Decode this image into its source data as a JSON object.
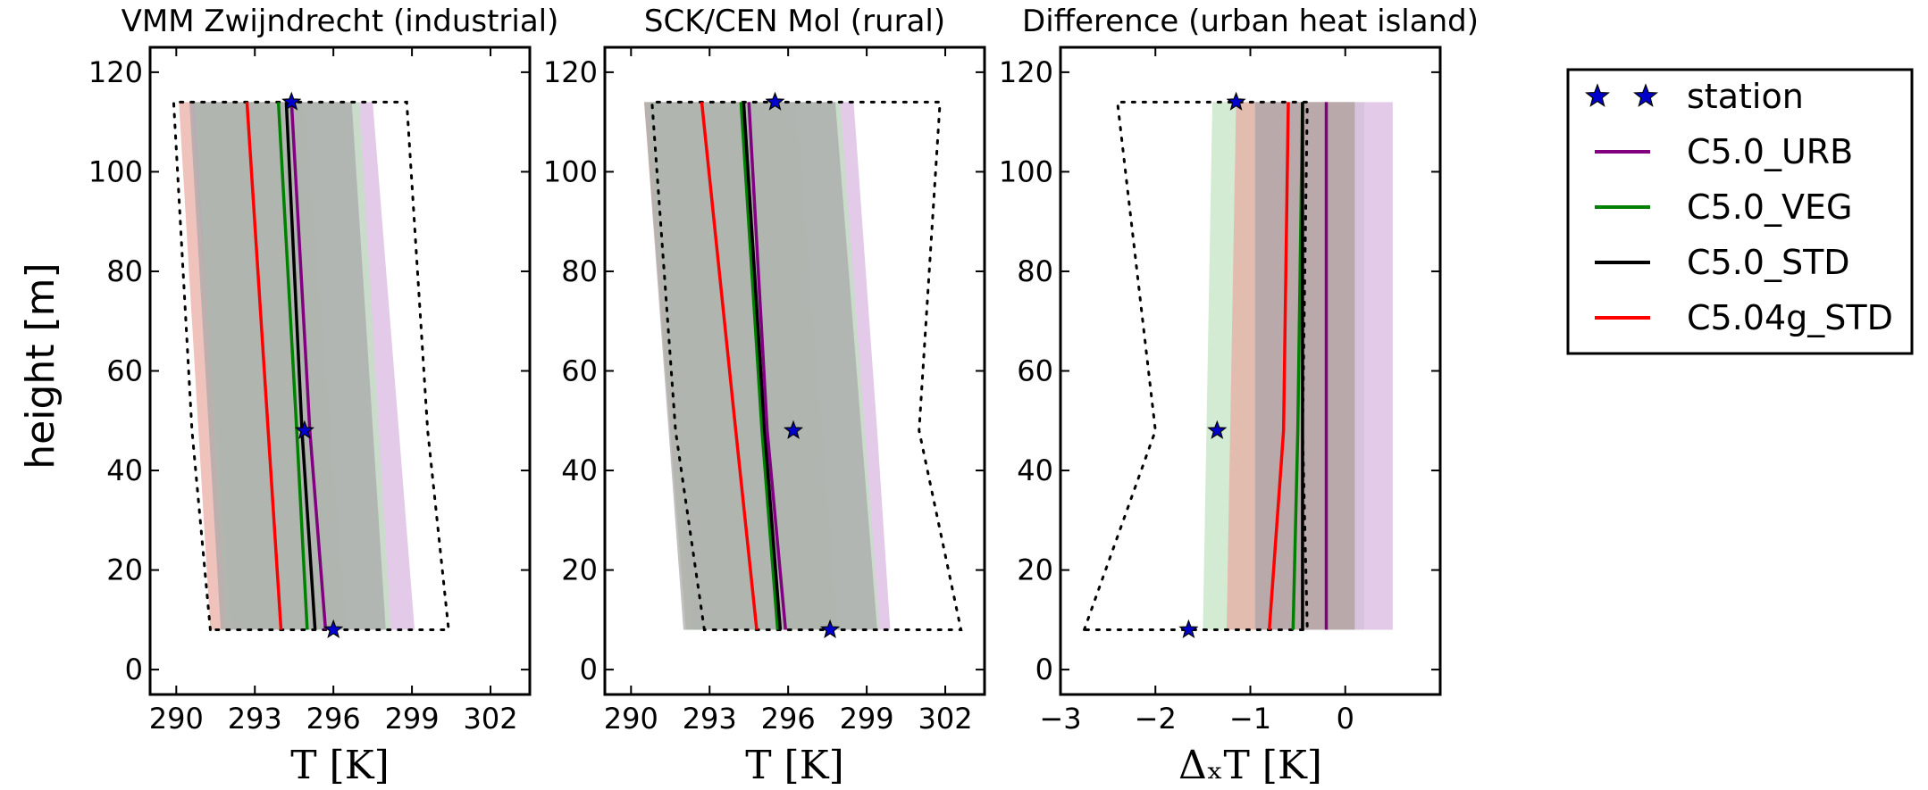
{
  "chart_data": [
    {
      "type": "line",
      "title": "VMM Zwijndrecht (industrial)",
      "xlabel": "T [K]",
      "ylabel": "height [m]",
      "xlim": [
        289,
        303.5
      ],
      "ylim": [
        -5,
        125
      ],
      "xticks": [
        290,
        293,
        296,
        299,
        302
      ],
      "xtick_labels": [
        "290",
        "293",
        "296",
        "299",
        "302"
      ],
      "yticks": [
        0,
        20,
        40,
        60,
        80,
        100,
        120
      ],
      "ytick_labels": [
        "0",
        "20",
        "40",
        "60",
        "80",
        "100",
        "120"
      ],
      "station": {
        "x": [
          296.0,
          294.9,
          294.4
        ],
        "y": [
          8,
          48,
          114
        ]
      },
      "envelope": {
        "y": [
          8,
          48,
          114
        ],
        "left": [
          291.3,
          290.6,
          289.9
        ],
        "right": [
          300.4,
          299.6,
          298.8
        ]
      },
      "bands": [
        {
          "series": "C5.04g_STD",
          "y": [
            8,
            114
          ],
          "left": [
            291.3,
            290.1
          ],
          "right": [
            296.5,
            294.9
          ]
        },
        {
          "series": "C5.0_URB",
          "y": [
            8,
            48,
            114
          ],
          "left": [
            292.1,
            291.5,
            290.6
          ],
          "right": [
            299.1,
            298.5,
            297.5
          ]
        },
        {
          "series": "C5.0_VEG",
          "y": [
            8,
            114
          ],
          "left": [
            291.9,
            290.7
          ],
          "right": [
            298.2,
            297.0
          ]
        },
        {
          "series": "C5.0_STD",
          "y": [
            8,
            114
          ],
          "left": [
            291.7,
            290.5
          ],
          "right": [
            298.0,
            296.7
          ]
        }
      ],
      "series": [
        {
          "name": "C5.04g_STD",
          "x": [
            294.0,
            292.7
          ],
          "y": [
            8,
            114
          ]
        },
        {
          "name": "C5.0_VEG",
          "x": [
            295.0,
            294.6,
            293.9
          ],
          "y": [
            8,
            48,
            114
          ]
        },
        {
          "name": "C5.0_STD",
          "x": [
            295.3,
            294.8,
            294.2
          ],
          "y": [
            8,
            48,
            114
          ]
        },
        {
          "name": "C5.0_URB",
          "x": [
            295.7,
            295.1,
            294.4
          ],
          "y": [
            8,
            48,
            114
          ]
        }
      ]
    },
    {
      "type": "line",
      "title": "SCK/CEN Mol (rural)",
      "xlabel": "T [K]",
      "ylabel": "",
      "xlim": [
        289,
        303.5
      ],
      "ylim": [
        -5,
        125
      ],
      "xticks": [
        290,
        293,
        296,
        299,
        302
      ],
      "xtick_labels": [
        "290",
        "293",
        "296",
        "299",
        "302"
      ],
      "yticks": [
        0,
        20,
        40,
        60,
        80,
        100,
        120
      ],
      "ytick_labels": [
        "0",
        "20",
        "40",
        "60",
        "80",
        "100",
        "120"
      ],
      "station": {
        "x": [
          297.6,
          296.2,
          295.5
        ],
        "y": [
          8,
          48,
          114
        ]
      },
      "envelope": {
        "y": [
          8,
          48,
          114
        ],
        "left": [
          292.8,
          291.7,
          290.8
        ],
        "right": [
          302.6,
          301.0,
          301.8
        ]
      },
      "bands": [
        {
          "series": "C5.04g_STD",
          "y": [
            8,
            114
          ],
          "left": [
            292.1,
            290.5
          ],
          "right": [
            297.9,
            296.3
          ]
        },
        {
          "series": "C5.0_URB",
          "y": [
            8,
            48,
            114
          ],
          "left": [
            292.3,
            291.7,
            290.7
          ],
          "right": [
            299.9,
            299.4,
            298.5
          ]
        },
        {
          "series": "C5.0_VEG",
          "y": [
            8,
            114
          ],
          "left": [
            292.1,
            290.6
          ],
          "right": [
            299.5,
            298.0
          ]
        },
        {
          "series": "C5.0_STD",
          "y": [
            8,
            114
          ],
          "left": [
            292.0,
            290.5
          ],
          "right": [
            299.4,
            297.8
          ]
        }
      ],
      "series": [
        {
          "name": "C5.04g_STD",
          "x": [
            294.8,
            294.0,
            292.7
          ],
          "y": [
            8,
            48,
            114
          ]
        },
        {
          "name": "C5.0_VEG",
          "x": [
            295.6,
            295.0,
            294.2
          ],
          "y": [
            8,
            48,
            114
          ]
        },
        {
          "name": "C5.0_STD",
          "x": [
            295.7,
            295.1,
            294.3
          ],
          "y": [
            8,
            48,
            114
          ]
        },
        {
          "name": "C5.0_URB",
          "x": [
            295.9,
            295.2,
            294.5
          ],
          "y": [
            8,
            48,
            114
          ]
        }
      ]
    },
    {
      "type": "line",
      "title": "Difference (urban heat island)",
      "xlabel": "ΔₓT [K]",
      "ylabel": "",
      "xlim": [
        -3,
        1
      ],
      "ylim": [
        -5,
        125
      ],
      "xticks": [
        -3,
        -2,
        -1,
        0
      ],
      "xtick_labels": [
        "−3",
        "−2",
        "−1",
        "0"
      ],
      "yticks": [
        0,
        20,
        40,
        60,
        80,
        100,
        120
      ],
      "ytick_labels": [
        "0",
        "20",
        "40",
        "60",
        "80",
        "100",
        "120"
      ],
      "station": {
        "x": [
          -1.65,
          -1.35,
          -1.15
        ],
        "y": [
          8,
          48,
          114
        ]
      },
      "envelope": {
        "y": [
          8,
          48,
          114
        ],
        "left": [
          -2.75,
          -2.0,
          -2.4
        ],
        "right": [
          -0.4,
          -0.45,
          -0.4
        ]
      },
      "bands": [
        {
          "series": "C5.0_VEG",
          "y": [
            8,
            114
          ],
          "left": [
            -1.5,
            -1.4
          ],
          "right": [
            0.2,
            0.2
          ]
        },
        {
          "series": "C5.0_URB",
          "y": [
            8,
            114
          ],
          "left": [
            -0.95,
            -0.95
          ],
          "right": [
            0.5,
            0.5
          ]
        },
        {
          "series": "C5.04g_STD",
          "y": [
            8,
            114
          ],
          "left": [
            -1.25,
            -1.15
          ],
          "right": [
            0.1,
            0.1
          ]
        },
        {
          "series": "C5.0_STD",
          "y": [
            8,
            114
          ],
          "left": [
            -0.95,
            -0.95
          ],
          "right": [
            0.1,
            0.1
          ]
        }
      ],
      "series": [
        {
          "name": "C5.04g_STD",
          "x": [
            -0.8,
            -0.65,
            -0.6
          ],
          "y": [
            8,
            48,
            114
          ]
        },
        {
          "name": "C5.0_VEG",
          "x": [
            -0.55,
            -0.5,
            -0.45
          ],
          "y": [
            8,
            48,
            114
          ]
        },
        {
          "name": "C5.0_STD",
          "x": [
            -0.45,
            -0.45,
            -0.45
          ],
          "y": [
            8,
            48,
            114
          ]
        },
        {
          "name": "C5.0_URB",
          "x": [
            -0.2,
            -0.2,
            -0.2
          ],
          "y": [
            8,
            48,
            114
          ]
        }
      ]
    }
  ],
  "legend": {
    "position": "right",
    "items": [
      {
        "label": "station",
        "kind": "star",
        "color": "#0000cc"
      },
      {
        "label": "C5.0_URB",
        "kind": "line",
        "color": "#800080"
      },
      {
        "label": "C5.0_VEG",
        "kind": "line",
        "color": "#008000"
      },
      {
        "label": "C5.0_STD",
        "kind": "line",
        "color": "#000000"
      },
      {
        "label": "C5.04g_STD",
        "kind": "line",
        "color": "#ff0000"
      }
    ]
  },
  "colors": {
    "C5.0_URB": "#800080",
    "C5.0_VEG": "#008000",
    "C5.0_STD": "#000000",
    "C5.04g_STD": "#ff0000",
    "station": "#0000cc",
    "band_C5.0_URB": "#d9b3e0",
    "band_C5.0_VEG": "#bfe3bf",
    "band_C5.0_STD": "#a6a6a6",
    "band_C5.04g_STD": "#e8a8a0"
  }
}
